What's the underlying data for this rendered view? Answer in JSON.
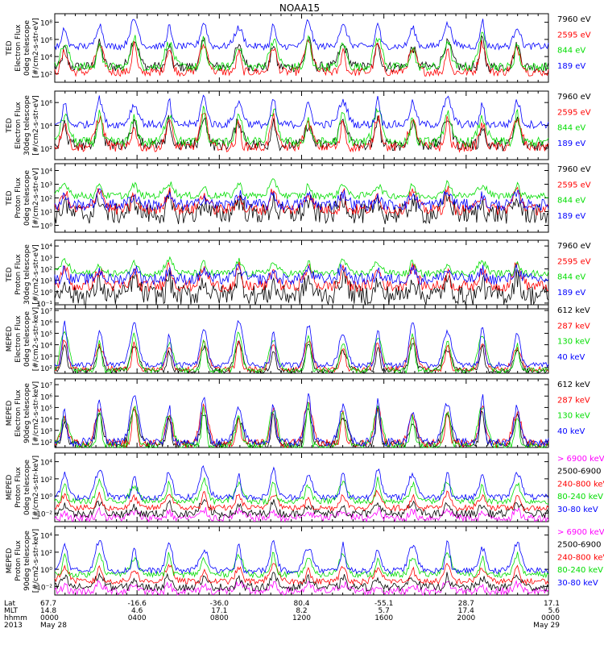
{
  "title": "NOAA15",
  "colors": {
    "black": "#000000",
    "red": "#ff0000",
    "green": "#00dd00",
    "blue": "#0000ff",
    "magenta": "#ff00ff"
  },
  "chart_data": [
    {
      "type": "line",
      "ylabel": [
        "TED",
        "Electron Flux",
        "0deg telescope",
        "[#/cm2-s-str-eV]"
      ],
      "yticks": [
        "10²",
        "10⁴",
        "10⁶",
        "10⁸"
      ],
      "ylim": [
        1,
        100000000
      ],
      "series": [
        {
          "name": "7960 eV",
          "color": "#000000",
          "base": 1.8,
          "amp": 3.2,
          "noise": 0.6
        },
        {
          "name": "2595 eV",
          "color": "#ff0000",
          "base": 1.2,
          "amp": 3.4,
          "noise": 0.5
        },
        {
          "name": "844 eV",
          "color": "#00dd00",
          "base": 1.8,
          "amp": 3.6,
          "noise": 0.5
        },
        {
          "name": "189 eV",
          "color": "#0000ff",
          "base": 4.2,
          "amp": 3.0,
          "noise": 0.4
        }
      ]
    },
    {
      "type": "line",
      "ylabel": [
        "TED",
        "Electron Flux",
        "30deg telescope",
        "[#/cm2-s-str-eV]"
      ],
      "yticks": [
        "10²",
        "10⁴",
        "10⁶"
      ],
      "ylim": [
        1,
        10000000
      ],
      "series": [
        {
          "name": "7960 eV",
          "color": "#000000",
          "base": 1.5,
          "amp": 3.0,
          "noise": 0.6
        },
        {
          "name": "2595 eV",
          "color": "#ff0000",
          "base": 1.3,
          "amp": 3.2,
          "noise": 0.5
        },
        {
          "name": "844 eV",
          "color": "#00dd00",
          "base": 1.8,
          "amp": 3.4,
          "noise": 0.5
        },
        {
          "name": "189 eV",
          "color": "#0000ff",
          "base": 3.6,
          "amp": 2.8,
          "noise": 0.4
        }
      ]
    },
    {
      "type": "line",
      "ylabel": [
        "TED",
        "Proton Flux",
        "0deg telescope",
        "[#/cm2-s-str-eV]"
      ],
      "yticks": [
        "10⁰",
        "10¹",
        "10²",
        "10³",
        "10⁴"
      ],
      "ylim": [
        0.1,
        100000
      ],
      "series": [
        {
          "name": "7960 eV",
          "color": "#000000",
          "base": 0.6,
          "amp": 1.4,
          "noise": 0.9
        },
        {
          "name": "2595 eV",
          "color": "#ff0000",
          "base": 1.0,
          "amp": 1.8,
          "noise": 0.5
        },
        {
          "name": "844 eV",
          "color": "#00dd00",
          "base": 2.2,
          "amp": 1.2,
          "noise": 0.3
        },
        {
          "name": "189 eV",
          "color": "#0000ff",
          "base": 1.4,
          "amp": 1.0,
          "noise": 0.5
        }
      ]
    },
    {
      "type": "line",
      "ylabel": [
        "TED",
        "Proton Flux",
        "30deg telescope",
        "[#/cm2-s-str-eV]"
      ],
      "yticks": [
        "10⁻¹",
        "10⁰",
        "10¹",
        "10²",
        "10³",
        "10⁴"
      ],
      "ylim": [
        0.1,
        100000
      ],
      "series": [
        {
          "name": "7960 eV",
          "color": "#000000",
          "base": 0.2,
          "amp": 1.6,
          "noise": 0.9
        },
        {
          "name": "2595 eV",
          "color": "#ff0000",
          "base": 1.0,
          "amp": 1.8,
          "noise": 0.5
        },
        {
          "name": "844 eV",
          "color": "#00dd00",
          "base": 2.1,
          "amp": 1.2,
          "noise": 0.3
        },
        {
          "name": "189 eV",
          "color": "#0000ff",
          "base": 1.6,
          "amp": 1.0,
          "noise": 0.5
        }
      ]
    },
    {
      "type": "line",
      "ylabel": [
        "MEPED",
        "Electron Flux",
        "0deg telescope",
        "[#/cm2-s-str-keV]"
      ],
      "yticks": [
        "10²",
        "10³",
        "10⁴",
        "10⁵",
        "10⁶",
        "10⁷"
      ],
      "ylim": [
        100,
        10000000
      ],
      "series": [
        {
          "name": "612 keV",
          "color": "#000000",
          "base": 2.2,
          "amp": 2.0,
          "noise": 0.2
        },
        {
          "name": "287 keV",
          "color": "#ff0000",
          "base": 2.3,
          "amp": 2.2,
          "noise": 0.2
        },
        {
          "name": "130 keV",
          "color": "#00dd00",
          "base": 2.2,
          "amp": 2.8,
          "noise": 0.2
        },
        {
          "name": "40 keV",
          "color": "#0000ff",
          "base": 2.6,
          "amp": 3.2,
          "noise": 0.2
        }
      ]
    },
    {
      "type": "line",
      "ylabel": [
        "MEPED",
        "Electron Flux",
        "90deg telescope",
        "[#/cm2-s-str-keV]"
      ],
      "yticks": [
        "10²",
        "10³",
        "10⁴",
        "10⁵",
        "10⁶",
        "10⁷"
      ],
      "ylim": [
        100,
        10000000
      ],
      "series": [
        {
          "name": "612 keV",
          "color": "#000000",
          "base": 2.2,
          "amp": 2.6,
          "noise": 0.3
        },
        {
          "name": "287 keV",
          "color": "#ff0000",
          "base": 2.3,
          "amp": 2.8,
          "noise": 0.3
        },
        {
          "name": "130 keV",
          "color": "#00dd00",
          "base": 2.1,
          "amp": 3.0,
          "noise": 0.3
        },
        {
          "name": "40 keV",
          "color": "#0000ff",
          "base": 2.4,
          "amp": 3.3,
          "noise": 0.3
        }
      ]
    },
    {
      "type": "line",
      "ylabel": [
        "MEPED",
        "Proton Flux",
        "0deg telescope",
        "[#/cm2-s-str-keV]"
      ],
      "yticks": [
        "10⁻²",
        "10⁰",
        "10²",
        "10⁴"
      ],
      "ylim": [
        0.01,
        100000
      ],
      "series": [
        {
          "name": "> 6900 keV",
          "color": "#ff00ff",
          "base": -1.6,
          "amp": 0.8,
          "noise": 0.4
        },
        {
          "name": "2500-6900",
          "color": "#000000",
          "base": -1.2,
          "amp": 1.2,
          "noise": 0.4
        },
        {
          "name": "240-800 keV",
          "color": "#ff0000",
          "base": -0.6,
          "amp": 1.6,
          "noise": 0.3
        },
        {
          "name": "80-240 keV",
          "color": "#00dd00",
          "base": 0.1,
          "amp": 2.2,
          "noise": 0.3
        },
        {
          "name": "30-80 keV",
          "color": "#0000ff",
          "base": 0.5,
          "amp": 3.0,
          "noise": 0.3
        }
      ]
    },
    {
      "type": "line",
      "ylabel": [
        "MEPED",
        "Proton Flux",
        "90deg telescope",
        "[#/cm2-s-str-keV]"
      ],
      "yticks": [
        "10⁻²",
        "10⁰",
        "10²",
        "10⁴"
      ],
      "ylim": [
        0.01,
        100000
      ],
      "series": [
        {
          "name": "> 6900 keV",
          "color": "#ff00ff",
          "base": -1.6,
          "amp": 0.8,
          "noise": 0.4
        },
        {
          "name": "2500-6900",
          "color": "#000000",
          "base": -1.2,
          "amp": 1.2,
          "noise": 0.4
        },
        {
          "name": "240-800 keV",
          "color": "#ff0000",
          "base": -0.6,
          "amp": 1.6,
          "noise": 0.3
        },
        {
          "name": "80-240 keV",
          "color": "#00dd00",
          "base": 0.1,
          "amp": 2.2,
          "noise": 0.3
        },
        {
          "name": "30-80 keV",
          "color": "#0000ff",
          "base": 0.5,
          "amp": 3.0,
          "noise": 0.3
        }
      ]
    }
  ],
  "xaxis": {
    "row_labels": [
      "Lat",
      "MLT",
      "hhmm",
      "2013"
    ],
    "ticks": [
      {
        "lat": "67.7",
        "mlt": "14.8",
        "hhmm": "0000",
        "date": "May 28"
      },
      {
        "lat": "-16.6",
        "mlt": "4.6",
        "hhmm": "0400",
        "date": ""
      },
      {
        "lat": "-36.0",
        "mlt": "17.1",
        "hhmm": "0800",
        "date": ""
      },
      {
        "lat": "80.4",
        "mlt": "8.2",
        "hhmm": "1200",
        "date": ""
      },
      {
        "lat": "-55.1",
        "mlt": "5.7",
        "hhmm": "1600",
        "date": ""
      },
      {
        "lat": "28.7",
        "mlt": "17.4",
        "hhmm": "2000",
        "date": ""
      },
      {
        "lat": "17.1",
        "mlt": "5.6",
        "hhmm": "0000",
        "date": "May 29"
      }
    ]
  }
}
